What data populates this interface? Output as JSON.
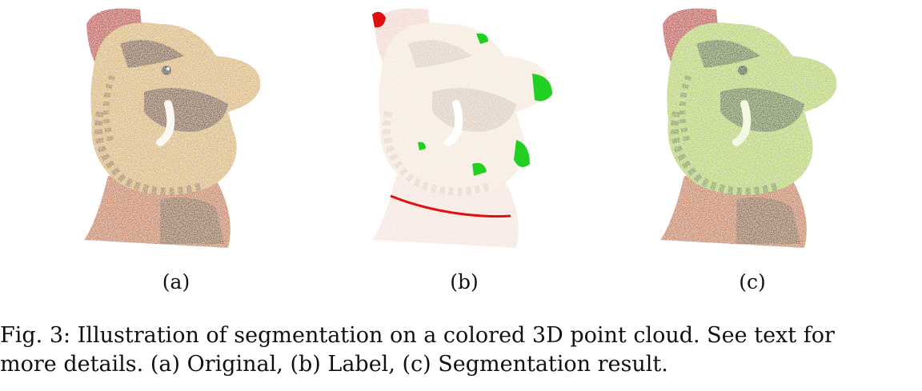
{
  "figure": {
    "subfigures": [
      {
        "id": "a",
        "label": "(a)",
        "kind": "original"
      },
      {
        "id": "b",
        "label": "(b)",
        "kind": "label"
      },
      {
        "id": "c",
        "label": "(c)",
        "kind": "segmentation"
      }
    ],
    "caption": {
      "line1": "Fig. 3: Illustration of segmentation on a colored 3D point cloud. See text for",
      "line2": "more details. (a) Original, (b) Label, (c) Segmentation result."
    },
    "colors": {
      "original_face": "#c99a4a",
      "original_dark": "#5a3417",
      "original_red": "#a3231b",
      "label_face": "#f1ddc8",
      "label_mark_green": "#22d022",
      "label_mark_red": "#e01010",
      "seg_face": "#9cbf3d",
      "seg_dark": "#3e5a14"
    }
  }
}
